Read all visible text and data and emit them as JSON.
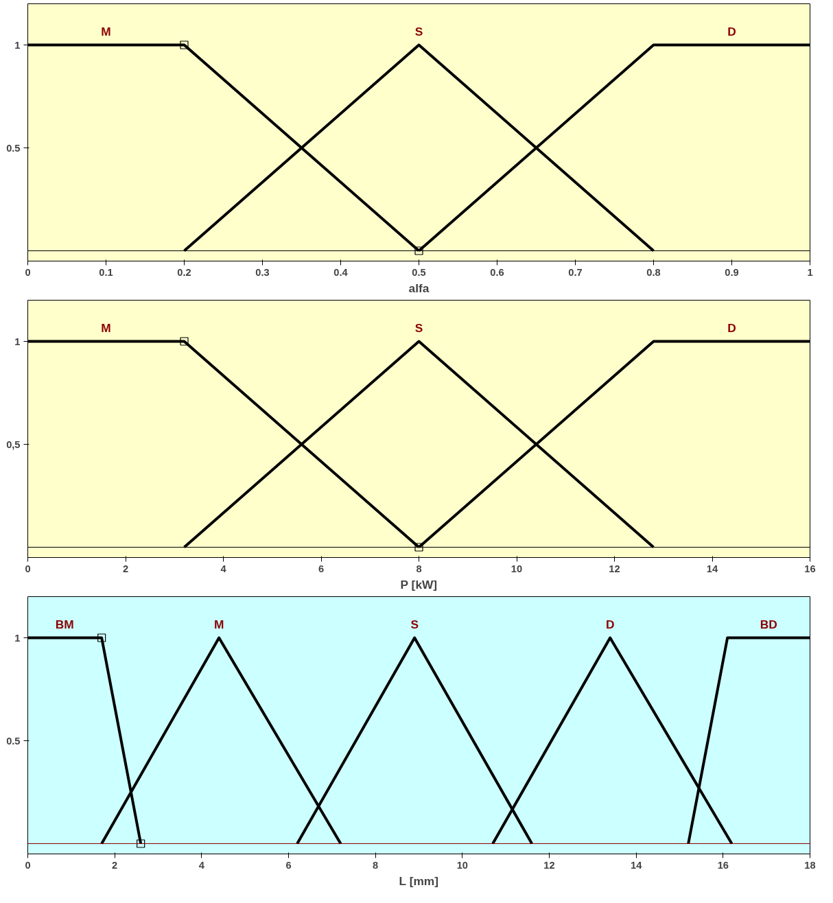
{
  "chart_data": [
    {
      "type": "line",
      "xlabel": "alfa",
      "xlim": [
        0,
        1
      ],
      "ylim": [
        -0.05,
        1.2
      ],
      "xticks": [
        0,
        0.1,
        0.2,
        0.3,
        0.4,
        0.5,
        0.6,
        0.7,
        0.8,
        0.9,
        1
      ],
      "yticks": [
        0.5,
        1
      ],
      "grid": false,
      "legend": false,
      "marker": "none",
      "line_style": "solid",
      "ref_lines": [
        {
          "axis": "y",
          "value": 0,
          "color": "#000000"
        }
      ],
      "series": [
        {
          "name": "M",
          "color": "#000000",
          "x": [
            0,
            0.2,
            0.5
          ],
          "values": [
            1,
            1,
            0
          ]
        },
        {
          "name": "S",
          "color": "#000000",
          "x": [
            0.2,
            0.5,
            0.8
          ],
          "values": [
            0,
            1,
            0
          ]
        },
        {
          "name": "D",
          "color": "#000000",
          "x": [
            0.5,
            0.8,
            1
          ],
          "values": [
            0,
            1,
            1
          ]
        },
        {
          "type": "scatter",
          "marker": "square",
          "color": "#000000",
          "x": [
            0.2,
            0.5
          ],
          "values": [
            1,
            0
          ]
        }
      ]
    },
    {
      "type": "line",
      "xlabel": "P [kW]",
      "xlim": [
        0,
        16
      ],
      "ylim": [
        -0.05,
        1.2
      ],
      "xticks": [
        0,
        2,
        4,
        6,
        8,
        10,
        12,
        14,
        16
      ],
      "yticks": [
        {
          "value": 0.5,
          "label": "0,5"
        },
        1
      ],
      "grid": false,
      "legend": false,
      "marker": "none",
      "line_style": "solid",
      "ref_lines": [
        {
          "axis": "y",
          "value": 0,
          "color": "#000000"
        }
      ],
      "series": [
        {
          "name": "M",
          "color": "#000000",
          "x": [
            0,
            3.2,
            8
          ],
          "values": [
            1,
            1,
            0
          ]
        },
        {
          "name": "S",
          "color": "#000000",
          "x": [
            3.2,
            8,
            12.8
          ],
          "values": [
            0,
            1,
            0
          ]
        },
        {
          "name": "D",
          "color": "#000000",
          "x": [
            8,
            12.8,
            16
          ],
          "values": [
            0,
            1,
            1
          ]
        },
        {
          "type": "scatter",
          "marker": "square",
          "color": "#000000",
          "x": [
            3.2,
            8
          ],
          "values": [
            1,
            0
          ]
        }
      ]
    },
    {
      "type": "line",
      "xlabel": "L [mm]",
      "xlim": [
        0,
        18
      ],
      "ylim": [
        -0.05,
        1.2
      ],
      "xticks": [
        0,
        2,
        4,
        6,
        8,
        10,
        12,
        14,
        16,
        18
      ],
      "yticks": [
        0.5,
        1
      ],
      "grid": false,
      "legend": false,
      "marker": "none",
      "line_style": "solid",
      "ref_lines": [
        {
          "axis": "y",
          "value": 0,
          "color": "#8b0000"
        }
      ],
      "series": [
        {
          "name": "BM",
          "color": "#000000",
          "x": [
            0,
            1.7,
            2.6
          ],
          "values": [
            1,
            1,
            0
          ]
        },
        {
          "name": "M",
          "color": "#000000",
          "x": [
            1.7,
            4.4,
            7.2
          ],
          "values": [
            0,
            1,
            0
          ]
        },
        {
          "name": "S",
          "color": "#000000",
          "x": [
            6.2,
            8.9,
            11.6
          ],
          "values": [
            0,
            1,
            0
          ]
        },
        {
          "name": "D",
          "color": "#000000",
          "x": [
            10.7,
            13.4,
            16.2
          ],
          "values": [
            0,
            1,
            0
          ]
        },
        {
          "name": "BD",
          "color": "#000000",
          "x": [
            15.2,
            16.1,
            18
          ],
          "values": [
            0,
            1,
            1
          ]
        },
        {
          "type": "scatter",
          "marker": "square",
          "color": "#000000",
          "x": [
            1.7,
            2.6
          ],
          "values": [
            1,
            0
          ]
        }
      ]
    }
  ]
}
